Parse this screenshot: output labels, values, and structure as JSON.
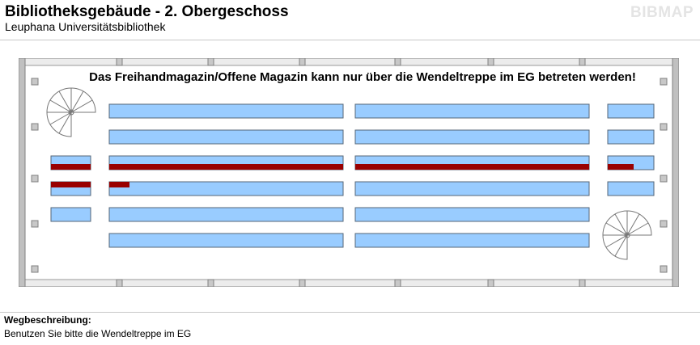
{
  "header": {
    "title": "Bibliotheksgebäude - 2. Obergeschoss",
    "subtitle": "Leuphana Universitätsbibliothek",
    "logo": "BIBMAP"
  },
  "floorplan": {
    "notice": "Das Freihandmagazin/Offene Magazin kann nur über die Wendeltreppe im EG betreten werden!",
    "colors": {
      "shelf": "#99ccff",
      "shelf_border": "#556677",
      "marker": "#990000",
      "wall": "#c0c0c0",
      "wall_edge": "#808080",
      "frame": "#ececec"
    },
    "staircases": [
      "spiral-staircase-top-left",
      "spiral-staircase-bottom-right"
    ]
  },
  "route": {
    "heading": "Wegbeschreibung:",
    "text": "Benutzen Sie bitte die Wendeltreppe im EG"
  }
}
